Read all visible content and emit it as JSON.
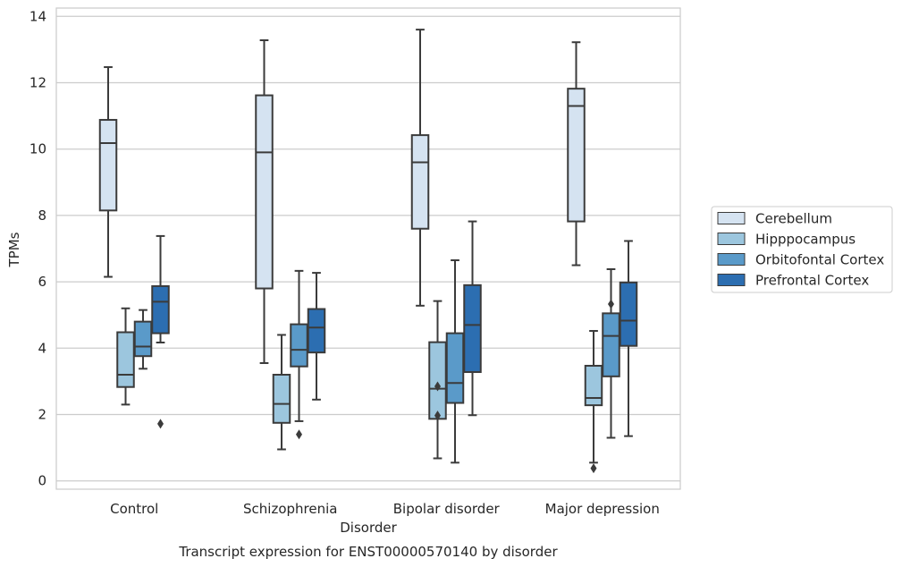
{
  "chart_data": {
    "type": "box",
    "caption": "Transcript expression for ENST00000570140 by disorder",
    "xlabel": "Disorder",
    "ylabel": "TPMs",
    "ylim": [
      -0.25,
      14.25
    ],
    "yticks": [
      0,
      2,
      4,
      6,
      8,
      10,
      12,
      14
    ],
    "grid": "horizontal",
    "legend_position": "right",
    "categories": [
      "Control",
      "Schizophrenia",
      "Bipolar disorder",
      "Major depression"
    ],
    "series": [
      {
        "name": "Cerebellum",
        "color": "#d5e3f1",
        "boxes": [
          {
            "whislo": 6.15,
            "q1": 8.15,
            "med": 10.18,
            "q3": 10.88,
            "whishi": 12.47,
            "fliers": []
          },
          {
            "whislo": 3.55,
            "q1": 5.8,
            "med": 9.9,
            "q3": 11.62,
            "whishi": 13.28,
            "fliers": []
          },
          {
            "whislo": 5.28,
            "q1": 7.6,
            "med": 9.6,
            "q3": 10.42,
            "whishi": 13.6,
            "fliers": []
          },
          {
            "whislo": 6.5,
            "q1": 7.82,
            "med": 11.3,
            "q3": 11.82,
            "whishi": 13.22,
            "fliers": []
          }
        ]
      },
      {
        "name": "Hipppocampus",
        "color": "#9cc6de",
        "boxes": [
          {
            "whislo": 2.3,
            "q1": 2.83,
            "med": 3.2,
            "q3": 4.48,
            "whishi": 5.2,
            "fliers": []
          },
          {
            "whislo": 0.95,
            "q1": 1.75,
            "med": 2.32,
            "q3": 3.2,
            "whishi": 4.4,
            "fliers": []
          },
          {
            "whislo": 0.68,
            "q1": 1.87,
            "med": 2.78,
            "q3": 4.18,
            "whishi": 5.42,
            "fliers": [
              2.85,
              1.97
            ]
          },
          {
            "whislo": 0.55,
            "q1": 2.28,
            "med": 2.5,
            "q3": 3.47,
            "whishi": 4.52,
            "fliers": [
              0.38
            ]
          }
        ]
      },
      {
        "name": "Orbitofontal Cortex",
        "color": "#5a9ac9",
        "boxes": [
          {
            "whislo": 3.38,
            "q1": 3.76,
            "med": 4.05,
            "q3": 4.8,
            "whishi": 5.15,
            "fliers": []
          },
          {
            "whislo": 1.8,
            "q1": 3.45,
            "med": 3.95,
            "q3": 4.72,
            "whishi": 6.33,
            "fliers": [
              1.4
            ]
          },
          {
            "whislo": 0.55,
            "q1": 2.35,
            "med": 2.95,
            "q3": 4.45,
            "whishi": 6.65,
            "fliers": []
          },
          {
            "whislo": 1.3,
            "q1": 3.15,
            "med": 4.37,
            "q3": 5.05,
            "whishi": 6.38,
            "fliers": [
              5.33
            ]
          }
        ]
      },
      {
        "name": "Prefrontal Cortex",
        "color": "#2c6eb1",
        "boxes": [
          {
            "whislo": 4.17,
            "q1": 4.45,
            "med": 5.4,
            "q3": 5.87,
            "whishi": 7.38,
            "fliers": [
              1.72
            ]
          },
          {
            "whislo": 2.45,
            "q1": 3.87,
            "med": 4.62,
            "q3": 5.18,
            "whishi": 6.27,
            "fliers": []
          },
          {
            "whislo": 1.98,
            "q1": 3.28,
            "med": 4.7,
            "q3": 5.9,
            "whishi": 7.82,
            "fliers": []
          },
          {
            "whislo": 1.35,
            "q1": 4.07,
            "med": 4.83,
            "q3": 5.98,
            "whishi": 7.23,
            "fliers": []
          }
        ]
      }
    ]
  },
  "colors": {
    "grid": "#cccccc",
    "frame": "#cccccc",
    "box_edge": "#3b3b3b",
    "background": "#ffffff"
  }
}
